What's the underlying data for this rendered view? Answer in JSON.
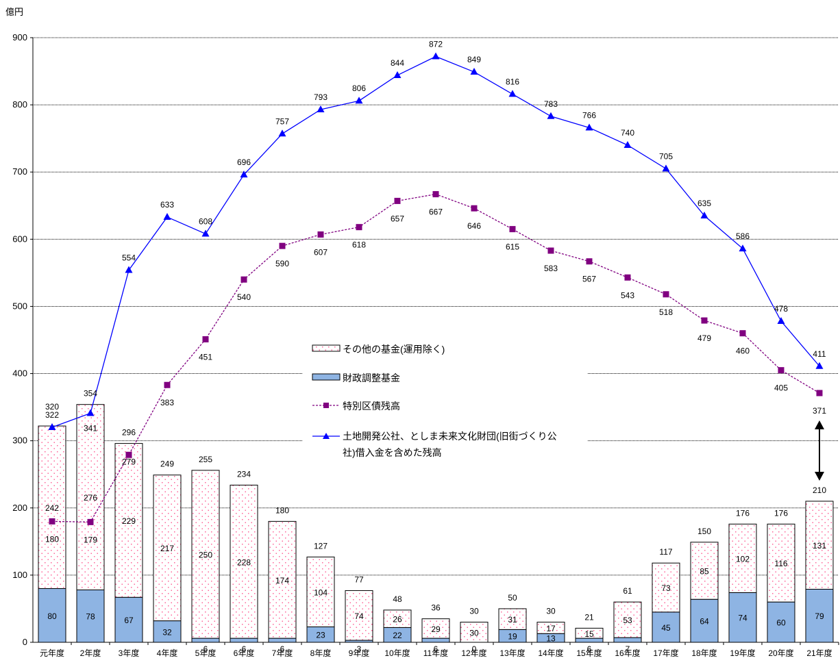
{
  "chart_data": {
    "type": "bar",
    "unit_label": "億円",
    "ylim": [
      0,
      900
    ],
    "yticks": [
      0,
      100,
      200,
      300,
      400,
      500,
      600,
      700,
      800,
      900
    ],
    "grid": true,
    "categories": [
      "元年度",
      "2年度",
      "3年度",
      "4年度",
      "5年度",
      "6年度",
      "7年度",
      "8年度",
      "9年度",
      "10年度",
      "11年度",
      "12年度",
      "13年度",
      "14年度",
      "15年度",
      "16年度",
      "17年度",
      "18年度",
      "19年度",
      "20年度",
      "21年度"
    ],
    "series": [
      {
        "name": "財政調整基金",
        "kind": "bar-stack-bottom",
        "color": "#8eb4e3",
        "values": [
          80,
          78,
          67,
          32,
          6,
          6,
          6,
          23,
          3,
          22,
          6,
          0,
          19,
          13,
          6,
          7,
          45,
          64,
          74,
          60,
          79
        ]
      },
      {
        "name": "その他の基金(運用除く)",
        "kind": "bar-stack-top",
        "color": "#ffffff",
        "dot_color": "#ff6699",
        "values": [
          242,
          276,
          229,
          217,
          250,
          228,
          174,
          104,
          74,
          26,
          29,
          30,
          31,
          17,
          15,
          53,
          73,
          85,
          102,
          116,
          131
        ]
      },
      {
        "name": "特別区債残高",
        "kind": "line",
        "color": "#800080",
        "values": [
          180,
          179,
          279,
          383,
          451,
          540,
          590,
          607,
          618,
          657,
          667,
          646,
          615,
          583,
          567,
          543,
          518,
          479,
          460,
          405,
          371
        ]
      },
      {
        "name": "土地開発公社、としま未来文化財団(旧街づくり公社)借入金を含めた残高",
        "kind": "line",
        "color": "#0000ff",
        "values": [
          320,
          341,
          554,
          633,
          608,
          696,
          757,
          793,
          806,
          844,
          872,
          849,
          816,
          783,
          766,
          740,
          705,
          635,
          586,
          478,
          411
        ]
      }
    ],
    "bar_totals": [
      322,
      354,
      296,
      249,
      255,
      234,
      180,
      127,
      77,
      48,
      36,
      30,
      50,
      30,
      21,
      61,
      117,
      150,
      176,
      176,
      210
    ],
    "legend": {
      "placement": "center",
      "items": [
        "その他の基金(運用除く)",
        "財政調整基金",
        "特別区債残高",
        "土地開発公社、としま未来文化財団(旧街づくり公社)借入金を含めた残高"
      ],
      "item4_line1": "土地開発公社、としま未来文化財団(旧街づくり公",
      "item4_line2": "社)借入金を含めた残高"
    }
  }
}
